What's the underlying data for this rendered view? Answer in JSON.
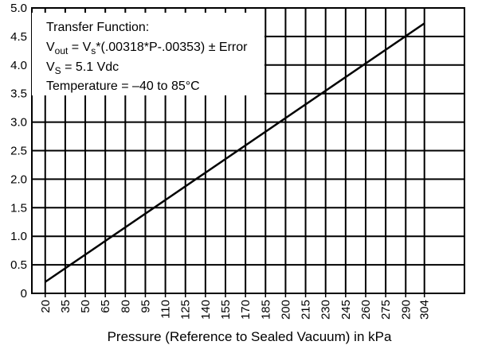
{
  "chart_data": {
    "type": "line",
    "title": "",
    "xlabel": "Pressure (Reference to Sealed Vacuum) in kPa",
    "ylabel": "",
    "x_ticks": [
      "20",
      "35",
      "50",
      "65",
      "80",
      "95",
      "110",
      "125",
      "140",
      "155",
      "170",
      "185",
      "200",
      "215",
      "230",
      "245",
      "260",
      "275",
      "290",
      "304"
    ],
    "y_ticks": [
      "0",
      "0.5",
      "1.0",
      "1.5",
      "2.0",
      "2.5",
      "3.0",
      "3.5",
      "4.0",
      "4.5",
      "5.0"
    ],
    "xlim": [
      10,
      334
    ],
    "ylim": [
      0,
      5.0
    ],
    "grid": true,
    "series": [
      {
        "x": [
          20,
          304
        ],
        "y": [
          0.2,
          4.73
        ],
        "color": "#000000"
      }
    ],
    "annotations": {
      "line1": "Transfer Function:",
      "line2_pre": "V",
      "line2_sub": "out",
      "line2_mid": " = V",
      "line2_sub2": "s",
      "line2_post": "*(.00318*P-.00353) ± Error",
      "line3_pre": "V",
      "line3_sub": "S",
      "line3_post": " = 5.1 Vdc",
      "line4": "Temperature = –40 to 85°C"
    }
  }
}
